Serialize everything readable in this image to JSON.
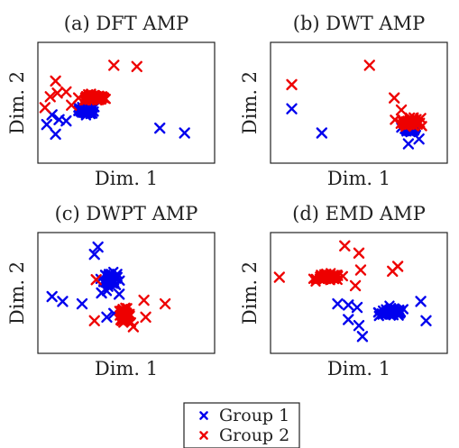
{
  "colors": {
    "group_1": "#0000ee",
    "group_2": "#ee0000"
  },
  "legend": {
    "entries": [
      {
        "label": "Group 1",
        "color": "#0000ee",
        "marker": "x"
      },
      {
        "label": "Group 2",
        "color": "#ee0000",
        "marker": "x"
      }
    ]
  },
  "chart_data": [
    {
      "type": "scatter",
      "title": "(a) DFT AMP",
      "xlabel": "Dim. 1",
      "ylabel": "Dim. 2",
      "xlim": [
        0,
        10
      ],
      "ylim": [
        0,
        10
      ],
      "series": [
        {
          "name": "Group 1",
          "cluster": {
            "center": [
              2.8,
              4.4
            ],
            "spread": [
              0.45,
              0.3
            ],
            "count": 60
          },
          "points": [
            [
              0.5,
              3.2
            ],
            [
              1.0,
              2.4
            ],
            [
              1.2,
              3.6
            ],
            [
              0.8,
              4.0
            ],
            [
              1.6,
              3.5
            ],
            [
              6.9,
              2.9
            ],
            [
              8.3,
              2.5
            ]
          ]
        },
        {
          "name": "Group 2",
          "cluster": {
            "center": [
              3.2,
              5.4
            ],
            "spread": [
              0.55,
              0.25
            ],
            "count": 60
          },
          "points": [
            [
              0.4,
              4.6
            ],
            [
              0.7,
              5.5
            ],
            [
              1.1,
              5.8
            ],
            [
              1.6,
              5.9
            ],
            [
              2.3,
              5.4
            ],
            [
              1.9,
              4.8
            ],
            [
              1.0,
              6.8
            ],
            [
              4.3,
              8.1
            ],
            [
              5.6,
              8.0
            ]
          ]
        }
      ]
    },
    {
      "type": "scatter",
      "title": "(b) DWT AMP",
      "xlabel": "Dim. 1",
      "ylabel": "Dim. 2",
      "xlim": [
        0,
        10
      ],
      "ylim": [
        0,
        10
      ],
      "series": [
        {
          "name": "Group 1",
          "cluster": {
            "center": [
              7.9,
              2.8
            ],
            "spread": [
              0.4,
              0.25
            ],
            "count": 35
          },
          "points": [
            [
              1.2,
              4.5
            ],
            [
              2.9,
              2.5
            ],
            [
              7.8,
              1.6
            ],
            [
              8.4,
              2.0
            ]
          ]
        },
        {
          "name": "Group 2",
          "cluster": {
            "center": [
              7.9,
              3.4
            ],
            "spread": [
              0.45,
              0.3
            ],
            "count": 60
          },
          "points": [
            [
              1.2,
              6.5
            ],
            [
              5.6,
              8.1
            ],
            [
              7.0,
              5.4
            ],
            [
              7.4,
              4.4
            ],
            [
              8.5,
              3.7
            ]
          ]
        }
      ]
    },
    {
      "type": "scatter",
      "title": "(c) DWPT AMP",
      "xlabel": "Dim. 1",
      "ylabel": "Dim. 2",
      "xlim": [
        0,
        10
      ],
      "ylim": [
        0,
        10
      ],
      "series": [
        {
          "name": "Group 1",
          "cluster": {
            "center": [
              4.1,
              6.1
            ],
            "spread": [
              0.35,
              0.5
            ],
            "count": 50
          },
          "points": [
            [
              3.4,
              8.8
            ],
            [
              3.2,
              8.2
            ],
            [
              0.8,
              4.7
            ],
            [
              1.4,
              4.3
            ],
            [
              2.5,
              4.1
            ],
            [
              3.6,
              5.0
            ],
            [
              4.6,
              4.9
            ],
            [
              4.3,
              3.3
            ],
            [
              3.9,
              3.0
            ]
          ]
        },
        {
          "name": "Group 2",
          "cluster": {
            "center": [
              4.9,
              3.2
            ],
            "spread": [
              0.3,
              0.45
            ],
            "count": 55
          },
          "points": [
            [
              3.3,
              6.1
            ],
            [
              3.2,
              2.7
            ],
            [
              6.0,
              4.4
            ],
            [
              7.2,
              4.1
            ],
            [
              6.1,
              3.0
            ],
            [
              5.4,
              2.2
            ]
          ]
        }
      ]
    },
    {
      "type": "scatter",
      "title": "(d) EMD AMP",
      "xlabel": "Dim. 1",
      "ylabel": "Dim. 2",
      "xlim": [
        0,
        10
      ],
      "ylim": [
        0,
        10
      ],
      "series": [
        {
          "name": "Group 1",
          "cluster": {
            "center": [
              6.9,
              3.4
            ],
            "spread": [
              0.7,
              0.3
            ],
            "count": 70
          },
          "points": [
            [
              3.8,
              4.1
            ],
            [
              4.4,
              4.0
            ],
            [
              4.9,
              3.8
            ],
            [
              4.4,
              2.8
            ],
            [
              5.0,
              2.3
            ],
            [
              5.2,
              1.4
            ],
            [
              8.5,
              4.3
            ],
            [
              8.8,
              2.7
            ]
          ]
        },
        {
          "name": "Group 2",
          "cluster": {
            "center": [
              3.3,
              6.3
            ],
            "spread": [
              0.6,
              0.25
            ],
            "count": 70
          },
          "points": [
            [
              0.5,
              6.3
            ],
            [
              4.2,
              8.9
            ],
            [
              5.0,
              8.3
            ],
            [
              6.9,
              6.8
            ],
            [
              7.2,
              7.2
            ],
            [
              5.1,
              6.9
            ],
            [
              4.8,
              5.6
            ]
          ]
        }
      ]
    }
  ]
}
